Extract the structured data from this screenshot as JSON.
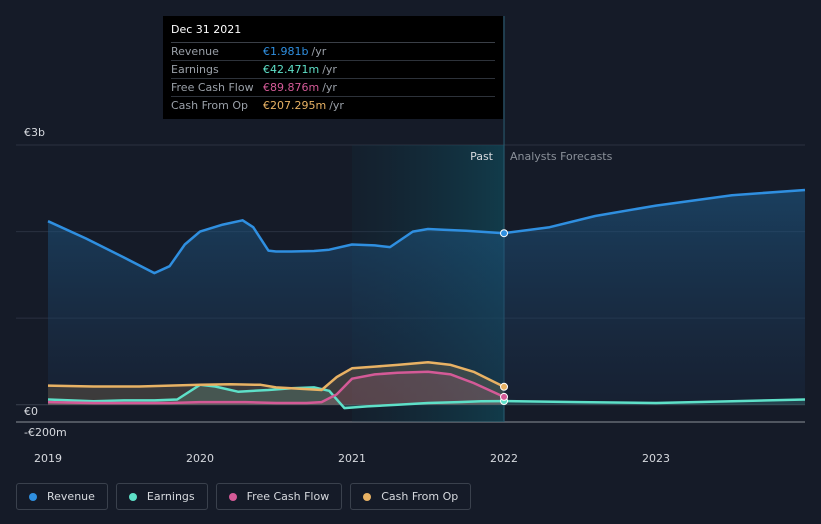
{
  "tooltip": {
    "date": "Dec 31 2021",
    "rows": [
      {
        "label": "Revenue",
        "value": "€1.981b",
        "unit": "/yr",
        "color": "#2f8fe0"
      },
      {
        "label": "Earnings",
        "value": "€42.471m",
        "unit": "/yr",
        "color": "#5ee0c8"
      },
      {
        "label": "Free Cash Flow",
        "value": "€89.876m",
        "unit": "/yr",
        "color": "#d45a97"
      },
      {
        "label": "Cash From Op",
        "value": "€207.295m",
        "unit": "/yr",
        "color": "#e8b264"
      }
    ]
  },
  "regions": {
    "past": "Past",
    "forecast": "Analysts Forecasts"
  },
  "legend": [
    {
      "label": "Revenue",
      "color": "#2f8fe0"
    },
    {
      "label": "Earnings",
      "color": "#5ee0c8"
    },
    {
      "label": "Free Cash Flow",
      "color": "#d45a97"
    },
    {
      "label": "Cash From Op",
      "color": "#e8b264"
    }
  ],
  "chart_data": {
    "type": "line",
    "y_tick_labels": [
      "€3b",
      "€0",
      "-€200m"
    ],
    "y_ticks": [
      3000,
      0,
      -200
    ],
    "ylim": [
      -200,
      3000
    ],
    "xlim": [
      2019,
      2023.98
    ],
    "x_tick_labels": [
      "2019",
      "2020",
      "2021",
      "2022",
      "2023"
    ],
    "x_ticks": [
      2019,
      2020,
      2021,
      2022,
      2023
    ],
    "highlight_range": [
      2021,
      2022
    ],
    "marker_x": 2022,
    "series": [
      {
        "name": "Revenue",
        "color": "#2f8fe0",
        "x": [
          2019.0,
          2019.25,
          2019.5,
          2019.7,
          2019.8,
          2019.9,
          2020.0,
          2020.15,
          2020.28,
          2020.35,
          2020.45,
          2020.5,
          2020.6,
          2020.75,
          2020.85,
          2021.0,
          2021.15,
          2021.25,
          2021.4,
          2021.5,
          2021.6,
          2021.75,
          2022.0,
          2022.3,
          2022.6,
          2023.0,
          2023.5,
          2023.98
        ],
        "y": [
          2120,
          1920,
          1700,
          1520,
          1600,
          1850,
          2000,
          2080,
          2130,
          2050,
          1780,
          1770,
          1770,
          1775,
          1790,
          1850,
          1840,
          1820,
          2000,
          2030,
          2020,
          2010,
          1981,
          2050,
          2180,
          2300,
          2420,
          2480
        ]
      },
      {
        "name": "Earnings",
        "color": "#5ee0c8",
        "x": [
          2019.0,
          2019.3,
          2019.5,
          2019.7,
          2019.85,
          2020.0,
          2020.1,
          2020.25,
          2020.45,
          2020.6,
          2020.75,
          2020.85,
          2020.95,
          2021.1,
          2021.3,
          2021.5,
          2021.7,
          2021.85,
          2022.0,
          2022.5,
          2023.0,
          2023.5,
          2023.98
        ],
        "y": [
          60,
          40,
          50,
          50,
          60,
          230,
          210,
          150,
          170,
          190,
          200,
          160,
          -40,
          -20,
          0,
          20,
          30,
          40,
          42,
          30,
          20,
          40,
          60
        ]
      },
      {
        "name": "Free Cash Flow",
        "color": "#d45a97",
        "x": [
          2019.0,
          2019.3,
          2019.6,
          2019.8,
          2020.0,
          2020.3,
          2020.5,
          2020.7,
          2020.8,
          2020.9,
          2021.0,
          2021.15,
          2021.3,
          2021.5,
          2021.65,
          2021.8,
          2022.0
        ],
        "y": [
          30,
          20,
          20,
          20,
          30,
          30,
          20,
          20,
          30,
          120,
          300,
          350,
          370,
          380,
          350,
          250,
          90
        ]
      },
      {
        "name": "Cash From Op",
        "color": "#e8b264",
        "x": [
          2019.0,
          2019.3,
          2019.6,
          2019.8,
          2020.0,
          2020.2,
          2020.4,
          2020.5,
          2020.7,
          2020.8,
          2020.9,
          2021.0,
          2021.15,
          2021.3,
          2021.5,
          2021.65,
          2021.8,
          2022.0
        ],
        "y": [
          220,
          210,
          210,
          220,
          230,
          235,
          230,
          200,
          180,
          170,
          320,
          420,
          440,
          460,
          490,
          460,
          380,
          207
        ]
      }
    ]
  }
}
